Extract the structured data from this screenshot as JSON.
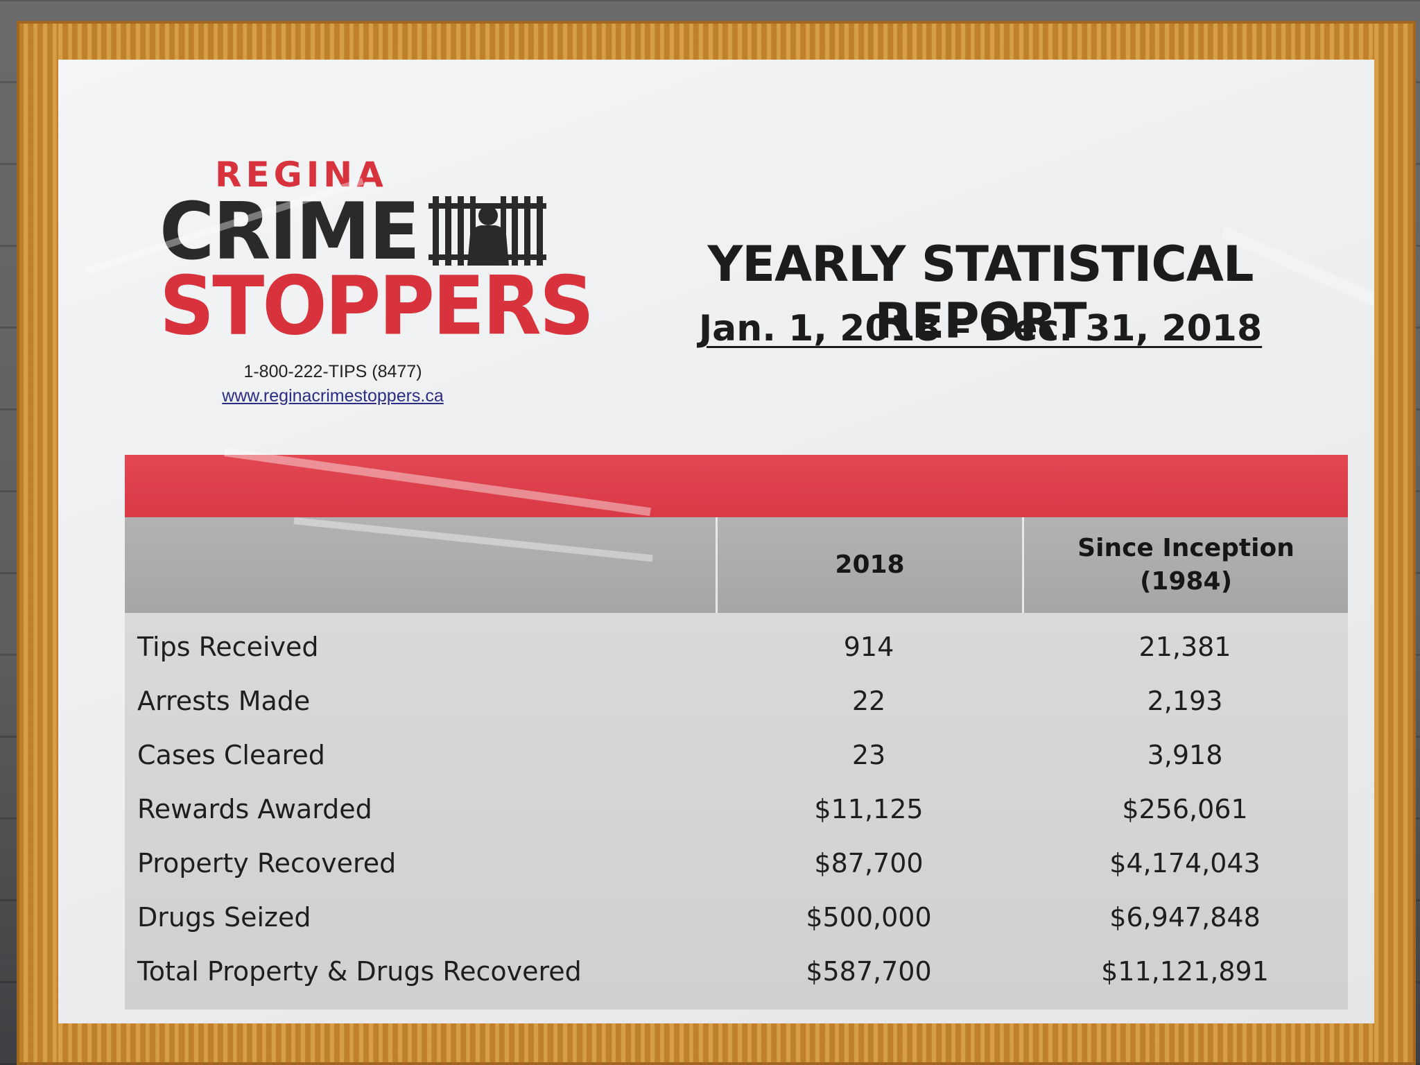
{
  "logo": {
    "regina": "REGINA",
    "crime": "CRIME",
    "stoppers": "STOPPERS",
    "phone": "1-800-222-TIPS (8477)",
    "url": "www.reginacrimestoppers.ca",
    "icon": "jail-bars-icon"
  },
  "report": {
    "title": "YEARLY STATISTICAL REPORT",
    "dates": "Jan. 1, 2018 – Dec. 31, 2018"
  },
  "table": {
    "headers": {
      "col1": "",
      "col2": "2018",
      "col3_line1": "Since Inception",
      "col3_line2": "(1984)"
    },
    "rows": [
      {
        "label": "Tips Received",
        "y2018": "914",
        "since": "21,381"
      },
      {
        "label": "Arrests Made",
        "y2018": "22",
        "since": "2,193"
      },
      {
        "label": "Cases Cleared",
        "y2018": "23",
        "since": "3,918"
      },
      {
        "label": "Rewards Awarded",
        "y2018": "$11,125",
        "since": "$256,061"
      },
      {
        "label": "Property Recovered",
        "y2018": "$87,700",
        "since": "$4,174,043"
      },
      {
        "label": "Drugs Seized",
        "y2018": "$500,000",
        "since": "$6,947,848"
      },
      {
        "label": "Total Property & Drugs Recovered",
        "y2018": "$587,700",
        "since": "$11,121,891"
      }
    ]
  },
  "colors": {
    "brand_red": "#d8323c",
    "frame_wood": "#c9892e",
    "header_gray": "#a6a6a6"
  }
}
